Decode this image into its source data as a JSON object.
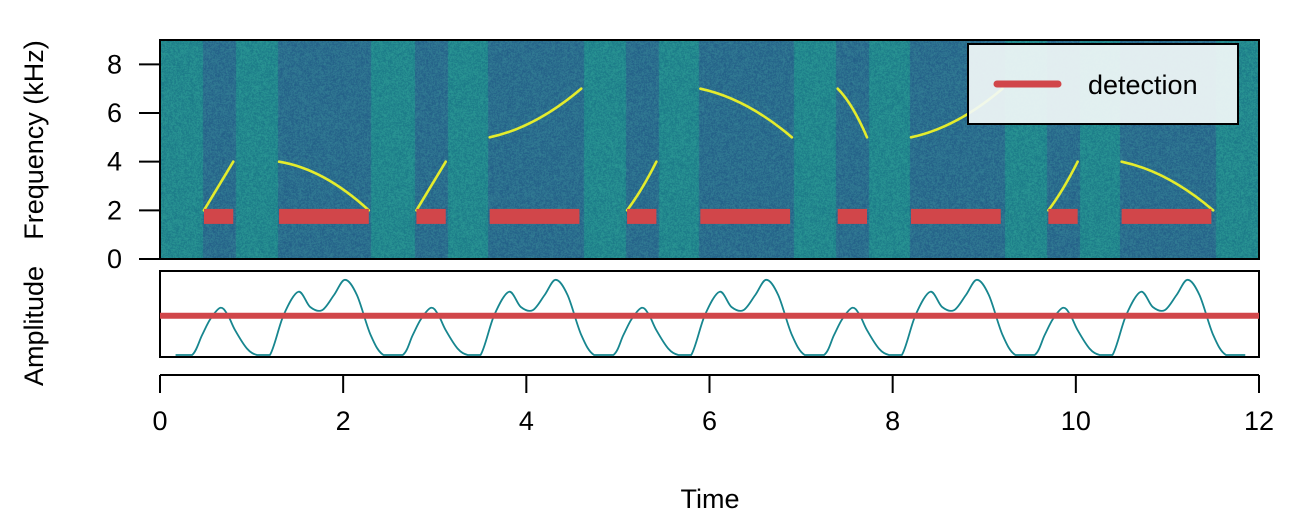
{
  "chart_data": [
    {
      "type": "heatmap",
      "panel": "spectrogram",
      "ylabel": "Frequency (kHz)",
      "xlim": [
        0,
        12
      ],
      "ylim": [
        0,
        9
      ],
      "yticks": [
        "0",
        "2",
        "4",
        "6",
        "8"
      ],
      "colormap": "viridis",
      "calls": [
        {
          "t": [
            0.48,
            0.64,
            0.8
          ],
          "f": [
            2,
            3,
            4
          ]
        },
        {
          "t": [
            1.3,
            1.79,
            2.28
          ],
          "f": [
            4,
            3.35,
            2
          ]
        },
        {
          "t": [
            2.8,
            2.96,
            3.12
          ],
          "f": [
            2,
            3,
            4
          ]
        },
        {
          "t": [
            3.6,
            4.1,
            4.6
          ],
          "f": [
            5,
            5.7,
            7
          ]
        },
        {
          "t": [
            5.1,
            5.26,
            5.42
          ],
          "f": [
            2,
            2.9,
            4
          ]
        },
        {
          "t": [
            5.9,
            6.4,
            6.9
          ],
          "f": [
            7,
            6.3,
            5
          ]
        },
        {
          "t": [
            7.4,
            7.56,
            7.72
          ],
          "f": [
            7,
            6.2,
            5
          ]
        },
        {
          "t": [
            8.2,
            8.7,
            9.2
          ],
          "f": [
            5,
            5.7,
            7
          ]
        },
        {
          "t": [
            9.7,
            9.86,
            10.02
          ],
          "f": [
            2,
            2.9,
            4
          ]
        },
        {
          "t": [
            10.5,
            11.0,
            11.5
          ],
          "f": [
            4,
            3.3,
            2
          ]
        }
      ],
      "detections": {
        "name": "detection",
        "frequency": 1.75,
        "intervals": [
          [
            0.48,
            0.8
          ],
          [
            1.3,
            2.28
          ],
          [
            2.8,
            3.12
          ],
          [
            3.6,
            4.58
          ],
          [
            5.1,
            5.42
          ],
          [
            5.9,
            6.88
          ],
          [
            7.4,
            7.72
          ],
          [
            8.2,
            9.18
          ],
          [
            9.7,
            10.02
          ],
          [
            10.5,
            11.48
          ]
        ]
      },
      "legend": {
        "position": "top-right",
        "label": "detection"
      }
    },
    {
      "type": "line",
      "panel": "amplitude",
      "ylabel": "Amplitude",
      "xlabel": "Time",
      "xlim": [
        0,
        12
      ],
      "xticks": [
        "0",
        "2",
        "4",
        "6",
        "8",
        "10",
        "12"
      ],
      "ylim": [
        0,
        1
      ],
      "threshold": 0.49,
      "envelope": [
        [
          0.17,
          0
        ],
        [
          0.35,
          0
        ],
        [
          0.46,
          0.25
        ],
        [
          0.55,
          0.45
        ],
        [
          0.66,
          0.59
        ],
        [
          0.74,
          0.5
        ],
        [
          0.82,
          0.31
        ],
        [
          0.95,
          0.08
        ],
        [
          1.06,
          0
        ],
        [
          1.2,
          0
        ],
        [
          1.35,
          0.5
        ],
        [
          1.51,
          0.79
        ],
        [
          1.64,
          0.6
        ],
        [
          1.77,
          0.56
        ],
        [
          1.9,
          0.75
        ],
        [
          2.02,
          0.94
        ],
        [
          2.15,
          0.75
        ],
        [
          2.3,
          0.25
        ],
        [
          2.44,
          0
        ],
        [
          2.65,
          0
        ],
        [
          2.76,
          0.25
        ],
        [
          2.85,
          0.45
        ],
        [
          2.96,
          0.59
        ],
        [
          3.04,
          0.5
        ],
        [
          3.12,
          0.31
        ],
        [
          3.25,
          0.08
        ],
        [
          3.36,
          0
        ],
        [
          3.5,
          0
        ],
        [
          3.65,
          0.5
        ],
        [
          3.81,
          0.79
        ],
        [
          3.94,
          0.6
        ],
        [
          4.07,
          0.56
        ],
        [
          4.2,
          0.75
        ],
        [
          4.32,
          0.94
        ],
        [
          4.45,
          0.75
        ],
        [
          4.6,
          0.25
        ],
        [
          4.74,
          0
        ],
        [
          4.95,
          0
        ],
        [
          5.06,
          0.25
        ],
        [
          5.15,
          0.45
        ],
        [
          5.26,
          0.59
        ],
        [
          5.34,
          0.5
        ],
        [
          5.42,
          0.31
        ],
        [
          5.55,
          0.08
        ],
        [
          5.66,
          0
        ],
        [
          5.8,
          0
        ],
        [
          5.95,
          0.5
        ],
        [
          6.11,
          0.79
        ],
        [
          6.24,
          0.6
        ],
        [
          6.37,
          0.56
        ],
        [
          6.5,
          0.75
        ],
        [
          6.62,
          0.94
        ],
        [
          6.75,
          0.75
        ],
        [
          6.9,
          0.25
        ],
        [
          7.04,
          0
        ],
        [
          7.25,
          0
        ],
        [
          7.36,
          0.25
        ],
        [
          7.45,
          0.45
        ],
        [
          7.56,
          0.59
        ],
        [
          7.64,
          0.5
        ],
        [
          7.72,
          0.31
        ],
        [
          7.85,
          0.08
        ],
        [
          7.96,
          0
        ],
        [
          8.1,
          0
        ],
        [
          8.25,
          0.5
        ],
        [
          8.41,
          0.79
        ],
        [
          8.54,
          0.6
        ],
        [
          8.67,
          0.56
        ],
        [
          8.8,
          0.75
        ],
        [
          8.92,
          0.94
        ],
        [
          9.05,
          0.75
        ],
        [
          9.2,
          0.25
        ],
        [
          9.34,
          0
        ],
        [
          9.55,
          0
        ],
        [
          9.66,
          0.25
        ],
        [
          9.75,
          0.45
        ],
        [
          9.86,
          0.59
        ],
        [
          9.94,
          0.5
        ],
        [
          10.02,
          0.31
        ],
        [
          10.15,
          0.08
        ],
        [
          10.26,
          0
        ],
        [
          10.4,
          0
        ],
        [
          10.55,
          0.5
        ],
        [
          10.71,
          0.79
        ],
        [
          10.84,
          0.6
        ],
        [
          10.97,
          0.56
        ],
        [
          11.1,
          0.75
        ],
        [
          11.22,
          0.94
        ],
        [
          11.35,
          0.75
        ],
        [
          11.5,
          0.25
        ],
        [
          11.64,
          0
        ],
        [
          11.85,
          0
        ]
      ]
    }
  ],
  "colors": {
    "detection": "#D1464A",
    "envelope": "#17868F",
    "call": "#E4EC2C",
    "background": "#23888E",
    "call_band": "#2B6E8E"
  }
}
